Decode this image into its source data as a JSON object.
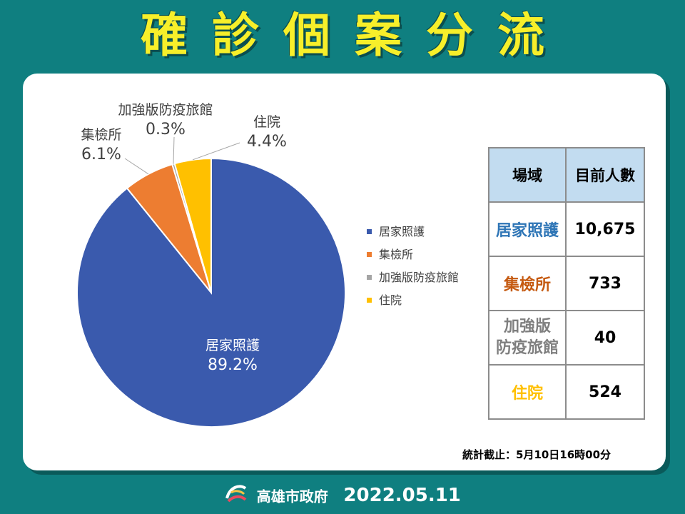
{
  "title": "確診個案分流",
  "chart_data": {
    "type": "pie",
    "series": [
      {
        "name": "居家照護",
        "value": 89.2,
        "label": "89.2%",
        "color": "#3a5aad"
      },
      {
        "name": "集檢所",
        "value": 6.1,
        "label": "6.1%",
        "color": "#ed7d31"
      },
      {
        "name": "加強版防疫旅館",
        "value": 0.3,
        "label": "0.3%",
        "color": "#a5a5a5"
      },
      {
        "name": "住院",
        "value": 4.4,
        "label": "4.4%",
        "color": "#ffc000"
      }
    ],
    "legend": [
      "居家照護",
      "集檢所",
      "加強版防疫旅館",
      "住院"
    ],
    "legend_position": "right"
  },
  "table": {
    "headers": [
      "場域",
      "目前人數"
    ],
    "rows": [
      {
        "name": "居家照護",
        "count": "10,675",
        "color": "#2e75b6"
      },
      {
        "name": "集檢所",
        "count": "733",
        "color": "#c55a11"
      },
      {
        "name_line1": "加強版",
        "name_line2": "防疫旅館",
        "count": "40",
        "color": "#7f7f7f"
      },
      {
        "name": "住院",
        "count": "524",
        "color": "#ffc000"
      }
    ]
  },
  "note": "統計截止：5月10日16時00分",
  "footer": {
    "org": "高雄市政府",
    "date": "2022.05.11"
  }
}
